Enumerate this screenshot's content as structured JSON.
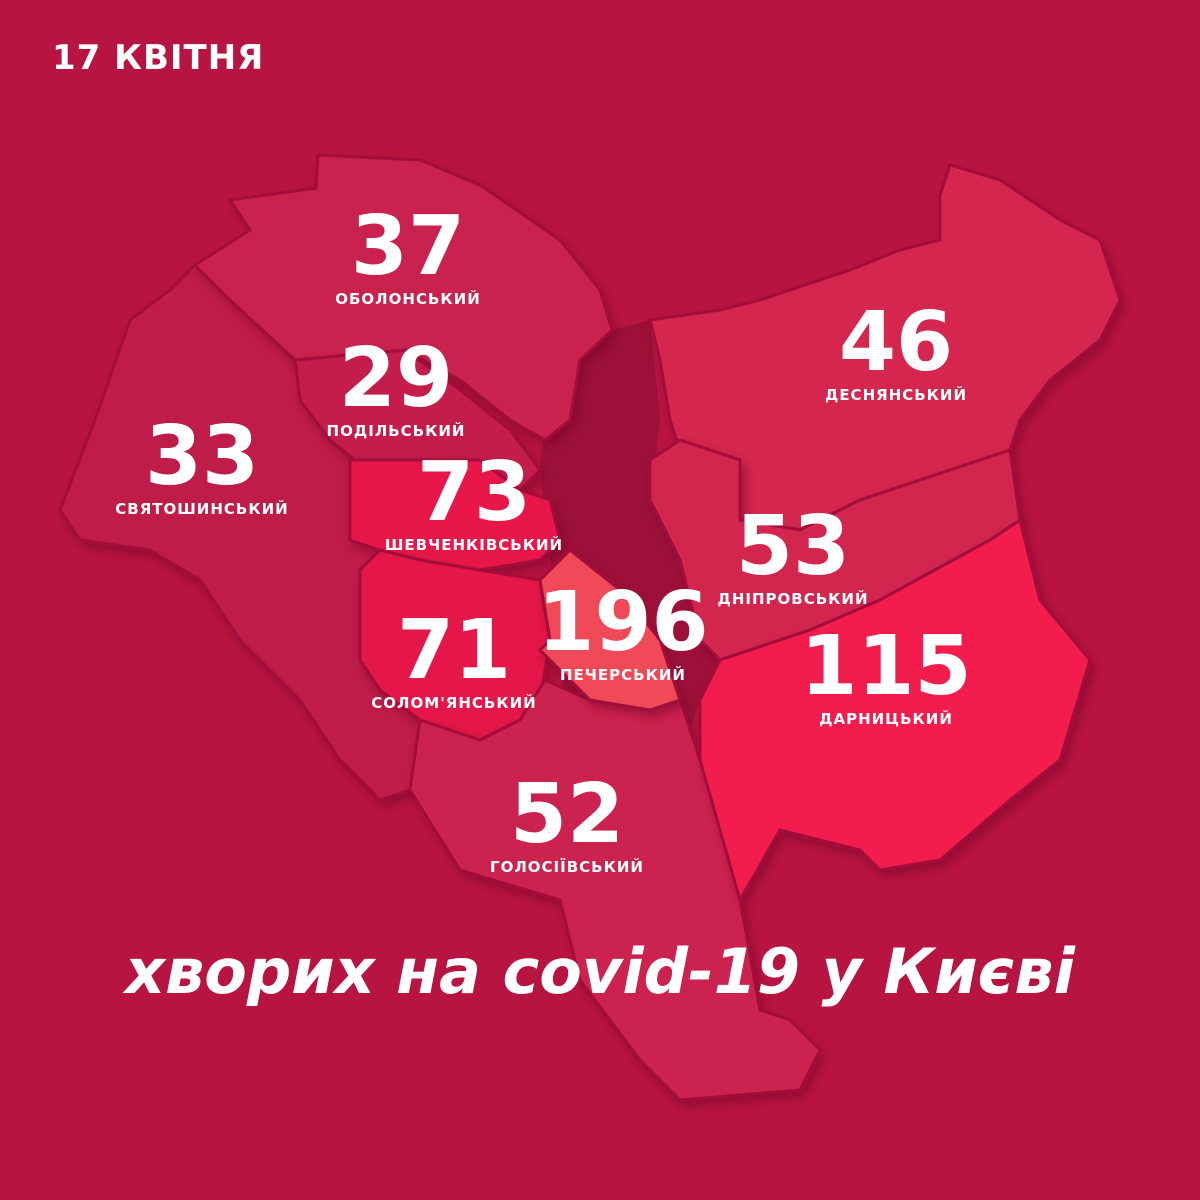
{
  "date": "17 КВІТНЯ",
  "caption": "хворих на covid-19 у Києві",
  "colors": {
    "background": "#b81441",
    "river": "#9c1039",
    "default": "#c9224f",
    "high": "#e8174a",
    "highest": "#f04858",
    "east_high": "#f21f4d"
  },
  "districts": [
    {
      "name": "ОБОЛОНСЬКИЙ",
      "value": "37",
      "color": "#c9224f"
    },
    {
      "name": "ПОДІЛЬСЬКИЙ",
      "value": "29",
      "color": "#c41f4b"
    },
    {
      "name": "СВЯТОШИНСЬКИЙ",
      "value": "33",
      "color": "#bf1d48"
    },
    {
      "name": "ШЕВЧЕНКІВСЬКИЙ",
      "value": "73",
      "color": "#e8174a"
    },
    {
      "name": "СОЛОМ'ЯНСЬКИЙ",
      "value": "71",
      "color": "#e5164a"
    },
    {
      "name": "ПЕЧЕРСЬКИЙ",
      "value": "196",
      "color": "#f04858"
    },
    {
      "name": "ГОЛОСІЇВСЬКИЙ",
      "value": "52",
      "color": "#cc2350"
    },
    {
      "name": "ДЕСНЯНСЬКИЙ",
      "value": "46",
      "color": "#d42650"
    },
    {
      "name": "ДНІПРОВСЬКИЙ",
      "value": "53",
      "color": "#d22550"
    },
    {
      "name": "ДАРНИЦЬКИЙ",
      "value": "115",
      "color": "#f21f4d"
    }
  ]
}
